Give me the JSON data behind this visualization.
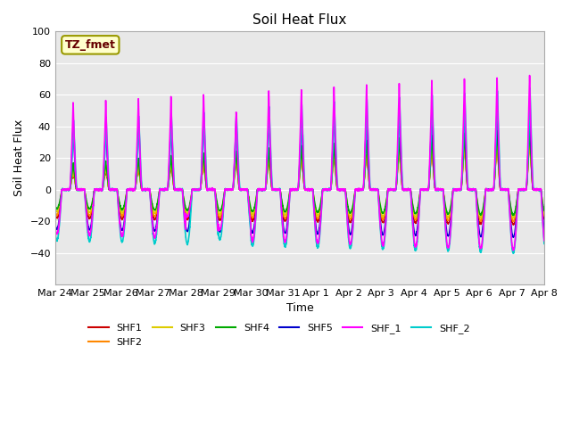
{
  "title": "Soil Heat Flux",
  "ylabel": "Soil Heat Flux",
  "xlabel": "Time",
  "ylim": [
    -60,
    100
  ],
  "yticks": [
    -40,
    -20,
    0,
    20,
    40,
    60,
    80,
    100
  ],
  "num_days": 15,
  "points_per_day": 288,
  "series": {
    "SHF1": {
      "color": "#cc0000",
      "lw": 1.0
    },
    "SHF2": {
      "color": "#ff8800",
      "lw": 1.0
    },
    "SHF3": {
      "color": "#ddcc00",
      "lw": 1.0
    },
    "SHF4": {
      "color": "#00aa00",
      "lw": 1.0
    },
    "SHF5": {
      "color": "#0000cc",
      "lw": 1.0
    },
    "SHF_1": {
      "color": "#ff00ff",
      "lw": 1.2
    },
    "SHF_2": {
      "color": "#00cccc",
      "lw": 1.2
    }
  },
  "plot_order": [
    "SHF1",
    "SHF2",
    "SHF3",
    "SHF4",
    "SHF5",
    "SHF_2",
    "SHF_1"
  ],
  "legend_order": [
    "SHF1",
    "SHF2",
    "SHF3",
    "SHF4",
    "SHF5",
    "SHF_1",
    "SHF_2"
  ],
  "tz_label": "TZ_fmet",
  "tz_label_color": "#660000",
  "tz_box_facecolor": "#ffffcc",
  "tz_box_edgecolor": "#999900",
  "background_color": "#e8e8e8",
  "x_tick_labels": [
    "Mar 24",
    "Mar 25",
    "Mar 26",
    "Mar 27",
    "Mar 28",
    "Mar 29",
    "Mar 30",
    "Mar 31",
    "Apr 1",
    "Apr 2",
    "Apr 3",
    "Apr 4",
    "Apr 5",
    "Apr 6",
    "Apr 7",
    "Apr 8"
  ]
}
